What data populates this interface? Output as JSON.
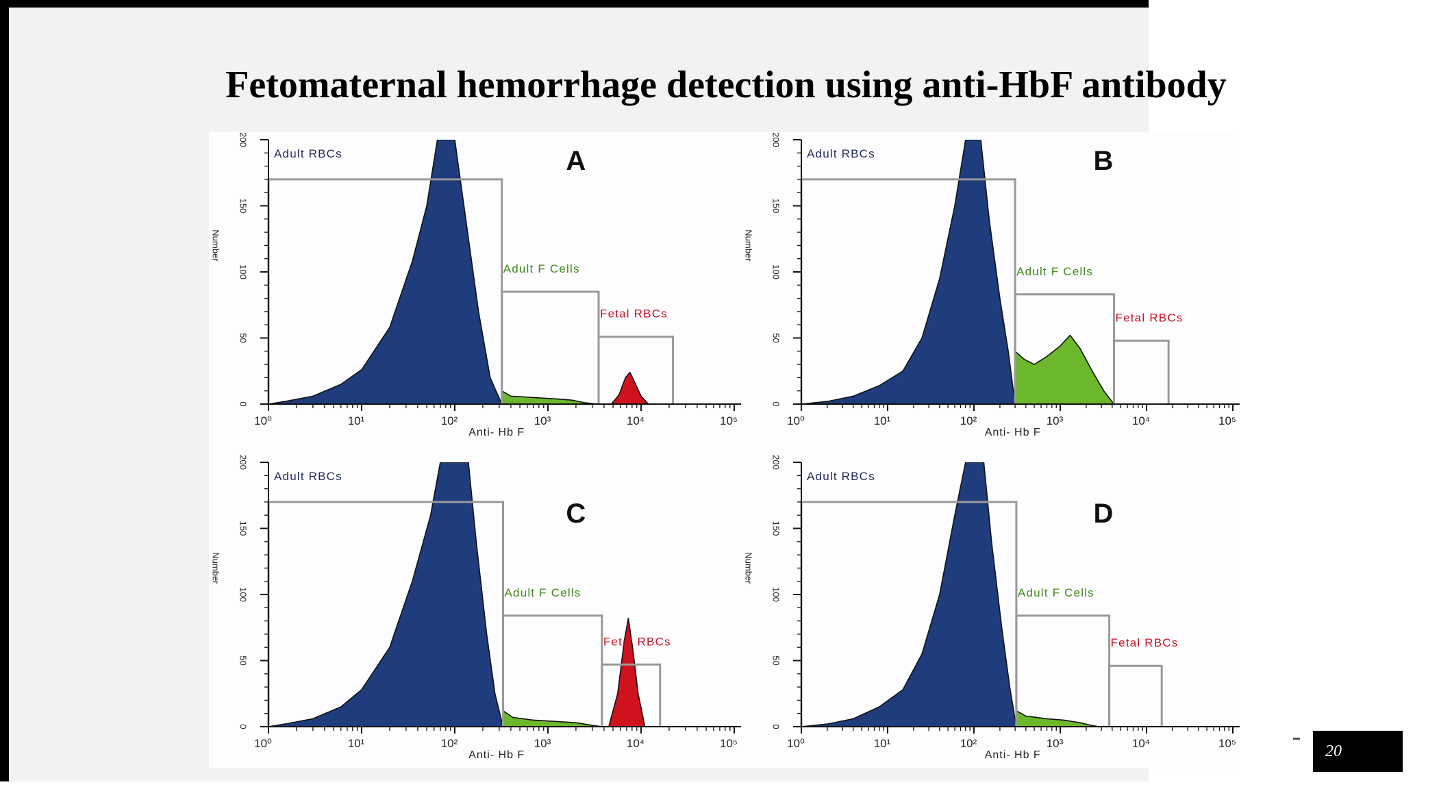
{
  "slide": {
    "title": "Fetomaternal hemorrhage detection using anti-HbF antibody",
    "page_number": "20"
  },
  "colors": {
    "adult_rbc": "#1f3c7c",
    "adult_f": "#6cb82c",
    "fetal": "#d0111e",
    "gate": "#999999",
    "adult_label": "#1f2a5a",
    "adult_f_label": "#3f8a1a",
    "fetal_label": "#c4121f"
  },
  "chart_data": [
    {
      "type": "area",
      "panel_label": "A",
      "xlabel": "Anti- Hb F",
      "ylabel": "Number",
      "x_scale": "log",
      "xlim": [
        1,
        100000
      ],
      "ylim": [
        0,
        200
      ],
      "x_ticks": [
        "10⁰",
        "10¹",
        "10²",
        "10³",
        "10⁴",
        "10⁵"
      ],
      "y_ticks": [
        "0",
        "50",
        "100",
        "150",
        "200"
      ],
      "gates": [
        {
          "label": "Adult RBCs",
          "x": [
            1,
            320
          ],
          "height": 170
        },
        {
          "label": "Adult F Cells",
          "x": [
            320,
            3500
          ],
          "height": 85
        },
        {
          "label": "Fetal RBCs",
          "x": [
            3500,
            22000
          ],
          "height": 51
        }
      ],
      "series": [
        {
          "name": "Adult RBCs",
          "points": [
            [
              1,
              0
            ],
            [
              1.5,
              2
            ],
            [
              3,
              6
            ],
            [
              6,
              15
            ],
            [
              10,
              26
            ],
            [
              20,
              58
            ],
            [
              35,
              108
            ],
            [
              50,
              150
            ],
            [
              65,
              200
            ],
            [
              100,
              200
            ],
            [
              130,
              142
            ],
            [
              180,
              70
            ],
            [
              240,
              20
            ],
            [
              320,
              0
            ]
          ]
        },
        {
          "name": "Adult F Cells",
          "points": [
            [
              320,
              0
            ],
            [
              320,
              10
            ],
            [
              400,
              6
            ],
            [
              700,
              5
            ],
            [
              1200,
              4
            ],
            [
              1800,
              3
            ],
            [
              2500,
              1
            ],
            [
              3500,
              0
            ]
          ]
        },
        {
          "name": "Fetal RBCs",
          "points": [
            [
              4800,
              0
            ],
            [
              5800,
              7
            ],
            [
              6800,
              20
            ],
            [
              7600,
              24
            ],
            [
              8600,
              16
            ],
            [
              10000,
              6
            ],
            [
              12000,
              0
            ]
          ]
        }
      ]
    },
    {
      "type": "area",
      "panel_label": "B",
      "xlabel": "Anti- Hb F",
      "ylabel": "Number",
      "x_scale": "log",
      "xlim": [
        1,
        100000
      ],
      "ylim": [
        0,
        200
      ],
      "x_ticks": [
        "10⁰",
        "10¹",
        "10²",
        "10³",
        "10⁴",
        "10⁵"
      ],
      "y_ticks": [
        "0",
        "50",
        "100",
        "150",
        "200"
      ],
      "gates": [
        {
          "label": "Adult RBCs",
          "x": [
            1,
            300
          ],
          "height": 170
        },
        {
          "label": "Adult F Cells",
          "x": [
            300,
            4200
          ],
          "height": 83
        },
        {
          "label": "Fetal RBCs",
          "x": [
            4200,
            18000
          ],
          "height": 48
        }
      ],
      "series": [
        {
          "name": "Adult RBCs",
          "points": [
            [
              1,
              0
            ],
            [
              2,
              2
            ],
            [
              4,
              6
            ],
            [
              8,
              14
            ],
            [
              15,
              25
            ],
            [
              25,
              50
            ],
            [
              40,
              95
            ],
            [
              60,
              150
            ],
            [
              80,
              200
            ],
            [
              120,
              200
            ],
            [
              150,
              140
            ],
            [
              200,
              80
            ],
            [
              250,
              40
            ],
            [
              300,
              0
            ]
          ]
        },
        {
          "name": "Adult F Cells",
          "points": [
            [
              300,
              0
            ],
            [
              300,
              40
            ],
            [
              380,
              34
            ],
            [
              500,
              30
            ],
            [
              700,
              36
            ],
            [
              1000,
              44
            ],
            [
              1300,
              52
            ],
            [
              1700,
              42
            ],
            [
              2300,
              26
            ],
            [
              3200,
              10
            ],
            [
              4200,
              0
            ]
          ]
        },
        {
          "name": "Fetal RBCs",
          "points": []
        }
      ]
    },
    {
      "type": "area",
      "panel_label": "C",
      "xlabel": "Anti- Hb F",
      "ylabel": "Number",
      "x_scale": "log",
      "xlim": [
        1,
        100000
      ],
      "ylim": [
        0,
        200
      ],
      "x_ticks": [
        "10⁰",
        "10¹",
        "10²",
        "10³",
        "10⁴",
        "10⁵"
      ],
      "y_ticks": [
        "0",
        "50",
        "100",
        "150",
        "200"
      ],
      "gates": [
        {
          "label": "Adult RBCs",
          "x": [
            1,
            330
          ],
          "height": 170
        },
        {
          "label": "Adult F Cells",
          "x": [
            330,
            3800
          ],
          "height": 84
        },
        {
          "label": "Fetal RBCs",
          "x": [
            3800,
            16000
          ],
          "height": 47
        }
      ],
      "series": [
        {
          "name": "Adult RBCs",
          "points": [
            [
              1,
              0
            ],
            [
              1.5,
              2
            ],
            [
              3,
              6
            ],
            [
              6,
              15
            ],
            [
              10,
              28
            ],
            [
              20,
              60
            ],
            [
              35,
              110
            ],
            [
              55,
              160
            ],
            [
              70,
              200
            ],
            [
              140,
              200
            ],
            [
              170,
              140
            ],
            [
              220,
              70
            ],
            [
              270,
              25
            ],
            [
              330,
              0
            ]
          ]
        },
        {
          "name": "Adult F Cells",
          "points": [
            [
              330,
              0
            ],
            [
              330,
              12
            ],
            [
              420,
              7
            ],
            [
              700,
              5
            ],
            [
              1200,
              4
            ],
            [
              2000,
              3
            ],
            [
              3000,
              1
            ],
            [
              3800,
              0
            ]
          ]
        },
        {
          "name": "Fetal RBCs",
          "points": [
            [
              4500,
              0
            ],
            [
              5600,
              25
            ],
            [
              6600,
              65
            ],
            [
              7300,
              82
            ],
            [
              8100,
              60
            ],
            [
              9300,
              25
            ],
            [
              11000,
              0
            ]
          ]
        }
      ]
    },
    {
      "type": "area",
      "panel_label": "D",
      "xlabel": "Anti- Hb F",
      "ylabel": "Number",
      "x_scale": "log",
      "xlim": [
        1,
        100000
      ],
      "ylim": [
        0,
        200
      ],
      "x_ticks": [
        "10⁰",
        "10¹",
        "10²",
        "10³",
        "10⁴",
        "10⁵"
      ],
      "y_ticks": [
        "0",
        "50",
        "100",
        "150",
        "200"
      ],
      "gates": [
        {
          "label": "Adult RBCs",
          "x": [
            1,
            310
          ],
          "height": 170
        },
        {
          "label": "Adult F Cells",
          "x": [
            310,
            3700
          ],
          "height": 84
        },
        {
          "label": "Fetal RBCs",
          "x": [
            3700,
            15000
          ],
          "height": 46
        }
      ],
      "series": [
        {
          "name": "Adult RBCs",
          "points": [
            [
              1,
              0
            ],
            [
              2,
              2
            ],
            [
              4,
              6
            ],
            [
              8,
              15
            ],
            [
              15,
              28
            ],
            [
              25,
              55
            ],
            [
              40,
              100
            ],
            [
              60,
              160
            ],
            [
              80,
              200
            ],
            [
              130,
              200
            ],
            [
              160,
              140
            ],
            [
              210,
              75
            ],
            [
              260,
              30
            ],
            [
              310,
              0
            ]
          ]
        },
        {
          "name": "Adult F Cells",
          "points": [
            [
              310,
              0
            ],
            [
              310,
              12
            ],
            [
              400,
              8
            ],
            [
              700,
              6
            ],
            [
              1100,
              5
            ],
            [
              1700,
              3
            ],
            [
              2300,
              1
            ],
            [
              2800,
              0
            ]
          ]
        },
        {
          "name": "Fetal RBCs",
          "points": []
        }
      ]
    }
  ]
}
